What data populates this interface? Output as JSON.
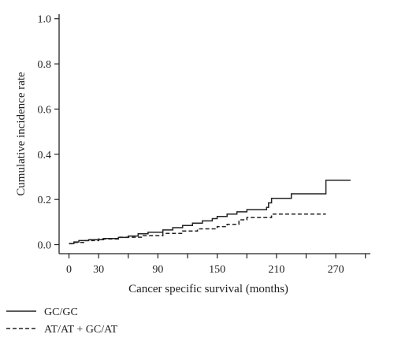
{
  "chart_data": {
    "type": "line",
    "title": "",
    "xlabel": "Cancer specific survival (months)",
    "ylabel": "Cumulative incidence rate",
    "xlim": [
      -10,
      305
    ],
    "ylim": [
      -0.04,
      1.02
    ],
    "x_ticks": [
      0,
      30,
      90,
      150,
      210,
      270
    ],
    "x_minor_ticks": [
      60,
      120,
      180,
      240,
      300
    ],
    "x_tick_labels": [
      "0",
      "30",
      "90",
      "150",
      "210",
      "270"
    ],
    "y_ticks": [
      0.0,
      0.2,
      0.4,
      0.6,
      0.8,
      1.0
    ],
    "y_tick_labels": [
      "0.0",
      "0.2",
      "0.4",
      "0.6",
      "0.8",
      "1.0"
    ],
    "grid": false,
    "legend_position": "bottom-left, below plot",
    "step": true,
    "series": [
      {
        "name": "GC/GC",
        "style": "solid",
        "color": "#222222",
        "x": [
          0,
          5,
          10,
          20,
          35,
          50,
          60,
          70,
          80,
          95,
          105,
          115,
          125,
          135,
          145,
          150,
          160,
          170,
          180,
          200,
          202,
          205,
          225,
          260,
          285
        ],
        "y": [
          0.005,
          0.012,
          0.018,
          0.022,
          0.027,
          0.032,
          0.038,
          0.048,
          0.055,
          0.065,
          0.075,
          0.085,
          0.095,
          0.105,
          0.115,
          0.125,
          0.135,
          0.145,
          0.155,
          0.165,
          0.185,
          0.205,
          0.225,
          0.285,
          0.285
        ]
      },
      {
        "name": "AT/AT + GC/AT",
        "style": "dashed",
        "color": "#222222",
        "x": [
          0,
          5,
          15,
          30,
          50,
          75,
          95,
          115,
          130,
          150,
          160,
          172,
          180,
          205,
          260
        ],
        "y": [
          0.004,
          0.01,
          0.018,
          0.025,
          0.033,
          0.04,
          0.05,
          0.06,
          0.07,
          0.08,
          0.09,
          0.11,
          0.12,
          0.135,
          0.135
        ]
      }
    ]
  }
}
